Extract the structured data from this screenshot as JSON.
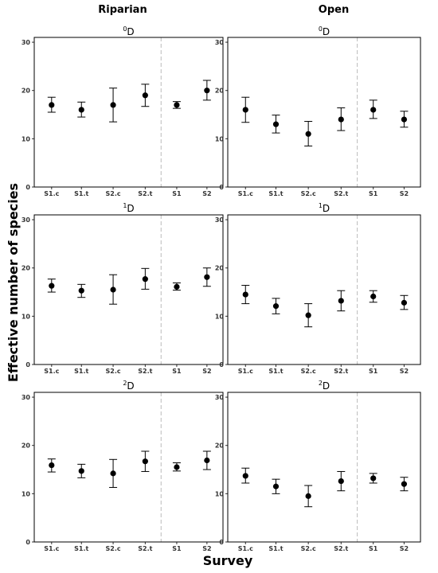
{
  "col_titles": [
    "Riparian",
    "Open"
  ],
  "xlabel": "Survey",
  "ylabel": "Effective number of species",
  "colors": {
    "point": "#000000",
    "divider": "#bbbbbb",
    "frame": "#000000"
  },
  "chart_data": [
    {
      "type": "scatter",
      "habitat": "Riparian",
      "order": "0",
      "title": "D",
      "categories": [
        "S1.c",
        "S1.t",
        "S2.c",
        "S2.t",
        "S1",
        "S2"
      ],
      "ylim": [
        0,
        31
      ],
      "yticks": [
        0,
        10,
        20,
        30
      ],
      "values": [
        17,
        16,
        17,
        19,
        17,
        20
      ],
      "lower": [
        15.5,
        14.5,
        13.5,
        16.7,
        16.3,
        18
      ],
      "upper": [
        18.6,
        17.6,
        20.5,
        21.3,
        17.7,
        22.1
      ],
      "divider_after_index": 3,
      "grid": false
    },
    {
      "type": "scatter",
      "habitat": "Open",
      "order": "0",
      "title": "D",
      "categories": [
        "S1.c",
        "S1.t",
        "S2.c",
        "S2.t",
        "S1",
        "S2"
      ],
      "ylim": [
        0,
        31
      ],
      "yticks": [
        0,
        10,
        20,
        30
      ],
      "values": [
        16,
        13,
        11,
        14,
        16,
        14
      ],
      "lower": [
        13.4,
        11.2,
        8.5,
        11.7,
        14.2,
        12.4
      ],
      "upper": [
        18.6,
        14.9,
        13.6,
        16.4,
        18,
        15.7
      ],
      "divider_after_index": 3,
      "grid": false
    },
    {
      "type": "scatter",
      "habitat": "Riparian",
      "order": "1",
      "title": "D",
      "categories": [
        "S1.c",
        "S1.t",
        "S2.c",
        "S2.t",
        "S1",
        "S2"
      ],
      "ylim": [
        0,
        31
      ],
      "yticks": [
        0,
        10,
        20,
        30
      ],
      "values": [
        16.3,
        15.3,
        15.5,
        17.7,
        16.1,
        18.1
      ],
      "lower": [
        15,
        13.9,
        12.5,
        15.6,
        15.4,
        16.2
      ],
      "upper": [
        17.7,
        16.6,
        18.6,
        19.9,
        16.9,
        20
      ],
      "divider_after_index": 3,
      "grid": false
    },
    {
      "type": "scatter",
      "habitat": "Open",
      "order": "1",
      "title": "D",
      "categories": [
        "S1.c",
        "S1.t",
        "S2.c",
        "S2.t",
        "S1",
        "S2"
      ],
      "ylim": [
        0,
        31
      ],
      "yticks": [
        0,
        10,
        20,
        30
      ],
      "values": [
        14.5,
        12.1,
        10.2,
        13.2,
        14.1,
        12.8
      ],
      "lower": [
        12.6,
        10.5,
        7.8,
        11.1,
        12.9,
        11.4
      ],
      "upper": [
        16.4,
        13.7,
        12.6,
        15.3,
        15.3,
        14.3
      ],
      "divider_after_index": 3,
      "grid": false
    },
    {
      "type": "scatter",
      "habitat": "Riparian",
      "order": "2",
      "title": "D",
      "categories": [
        "S1.c",
        "S1.t",
        "S2.c",
        "S2.t",
        "S1",
        "S2"
      ],
      "ylim": [
        0,
        31
      ],
      "yticks": [
        0,
        10,
        20,
        30
      ],
      "values": [
        15.9,
        14.7,
        14.2,
        16.7,
        15.5,
        16.9
      ],
      "lower": [
        14.5,
        13.3,
        11.3,
        14.6,
        14.7,
        15
      ],
      "upper": [
        17.2,
        16.1,
        17.1,
        18.8,
        16.4,
        18.8
      ],
      "divider_after_index": 3,
      "grid": false
    },
    {
      "type": "scatter",
      "habitat": "Open",
      "order": "2",
      "title": "D",
      "categories": [
        "S1.c",
        "S1.t",
        "S2.c",
        "S2.t",
        "S1",
        "S2"
      ],
      "ylim": [
        0,
        31
      ],
      "yticks": [
        0,
        10,
        20,
        30
      ],
      "values": [
        13.7,
        11.5,
        9.5,
        12.6,
        13.2,
        12
      ],
      "lower": [
        12.2,
        10,
        7.3,
        10.6,
        12.2,
        10.6
      ],
      "upper": [
        15.3,
        13,
        11.7,
        14.6,
        14.2,
        13.4
      ],
      "divider_after_index": 3,
      "grid": false
    }
  ]
}
